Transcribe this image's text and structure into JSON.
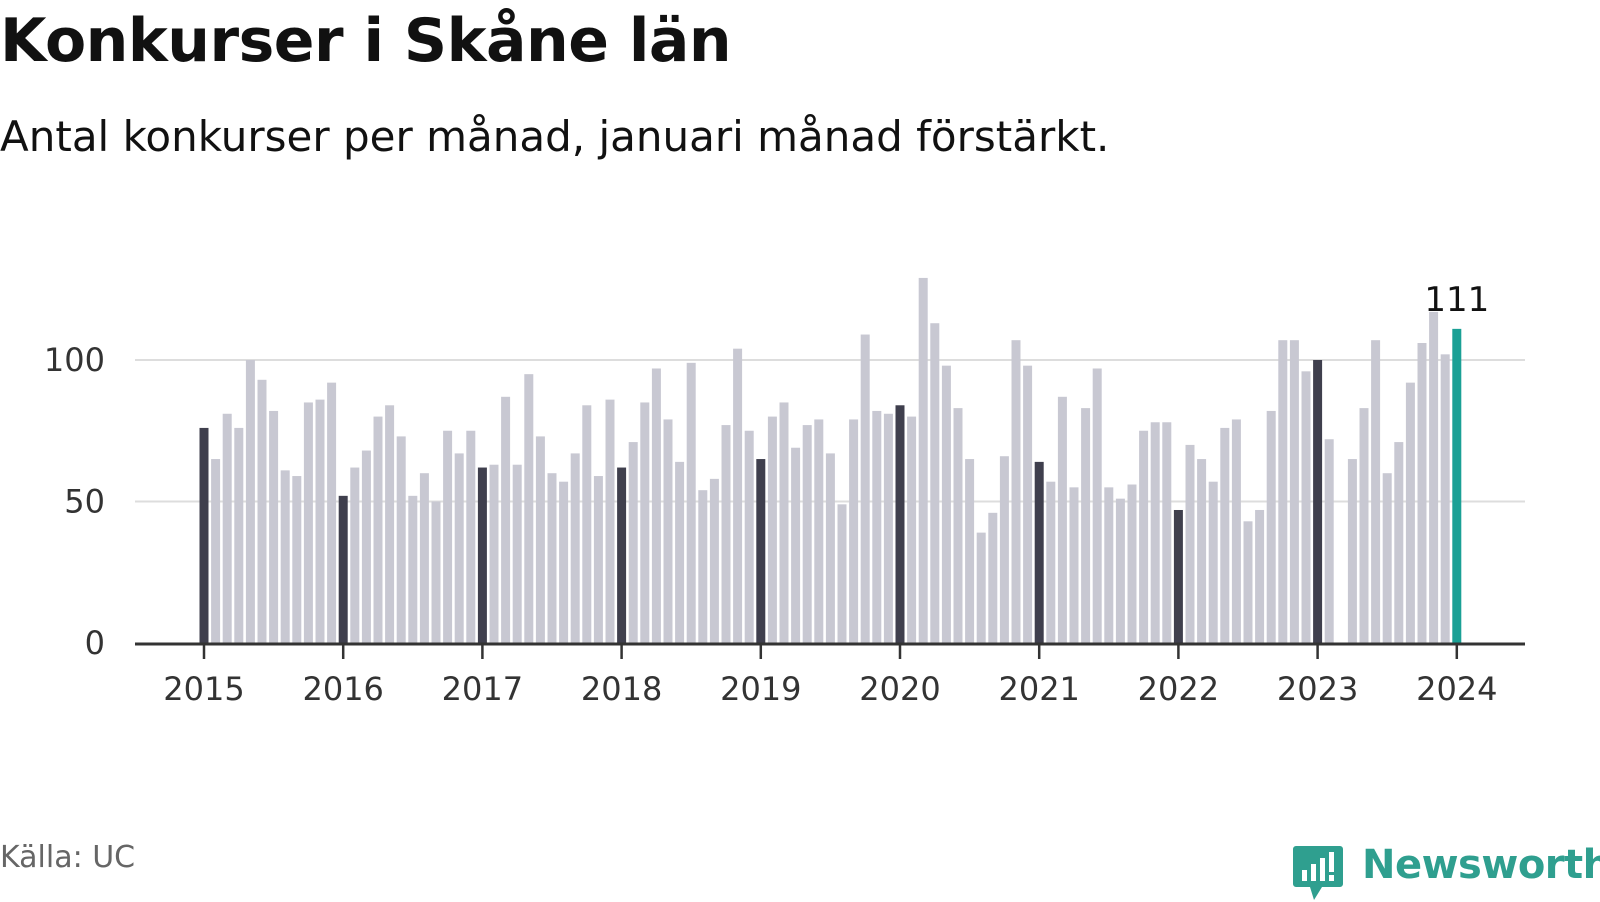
{
  "title": "Konkurser i Skåne län",
  "subtitle": "Antal konkurser per månad, januari månad förstärkt.",
  "source": "Källa: UC",
  "brand": {
    "name": "Newsworthy",
    "icon": "newsworthy-logo-icon"
  },
  "colors": {
    "january": "#3f3f4d",
    "other": "#c8c8d2",
    "latest": "#1aa095",
    "axis": "#333333",
    "grid": "#dddddd"
  },
  "chart_data": {
    "type": "bar",
    "title": "Konkurser i Skåne län",
    "subtitle": "Antal konkurser per månad, januari månad förstärkt.",
    "x_start": "2015-01",
    "x_ticks": [
      "2015",
      "2016",
      "2017",
      "2018",
      "2019",
      "2020",
      "2021",
      "2022",
      "2023",
      "2024"
    ],
    "y_ticks": [
      0,
      50,
      100
    ],
    "ylim": [
      0,
      135
    ],
    "grid": true,
    "highlight_label": "111",
    "series": [
      {
        "values": [
          76,
          65,
          81,
          76,
          100,
          93,
          82,
          61,
          59,
          85,
          86,
          92,
          52,
          62,
          68,
          80,
          84,
          73,
          52,
          60,
          50,
          75,
          67,
          75,
          62,
          63,
          87,
          63,
          95,
          73,
          60,
          57,
          67,
          84,
          59,
          86,
          62,
          71,
          85,
          97,
          79,
          64,
          99,
          54,
          58,
          77,
          104,
          75,
          65,
          80,
          85,
          69,
          77,
          79,
          67,
          49,
          79,
          109,
          82,
          81,
          84,
          80,
          129,
          113,
          98,
          83,
          65,
          39,
          46,
          66,
          107,
          98,
          64,
          57,
          87,
          55,
          83,
          97,
          55,
          51,
          56,
          75,
          78,
          78,
          47,
          70,
          65,
          57,
          76,
          79,
          43,
          47,
          82,
          107,
          107,
          96,
          100,
          72,
          0,
          65,
          83,
          107,
          60,
          71,
          92,
          106,
          117,
          102,
          111
        ]
      }
    ]
  }
}
